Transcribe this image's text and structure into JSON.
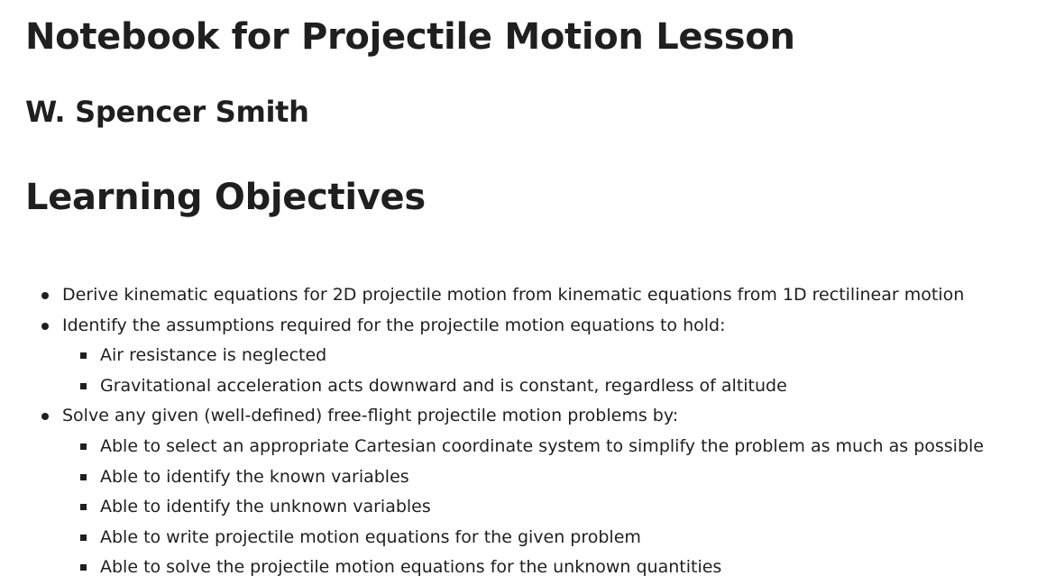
{
  "document": {
    "title": "Notebook for Projectile Motion Lesson",
    "author": "W. Spencer Smith",
    "objectives_heading": "Learning Objectives",
    "objectives": [
      {
        "text": "Derive kinematic equations for 2D projectile motion from kinematic equations from 1D rectilinear motion",
        "subitems": []
      },
      {
        "text": "Identify the assumptions required for the projectile motion equations to hold:",
        "subitems": [
          "Air resistance is neglected",
          "Gravitational acceleration acts downward and is constant, regardless of altitude"
        ]
      },
      {
        "text": "Solve any given (well-defined) free-flight projectile motion problems by:",
        "subitems": [
          "Able to select an appropriate Cartesian coordinate system to simplify the problem as much as possible",
          "Able to identify the known variables",
          "Able to identify the unknown variables",
          "Able to write projectile motion equations for the given problem",
          "Able to solve the projectile motion equations for the unknown quantities"
        ]
      }
    ]
  }
}
